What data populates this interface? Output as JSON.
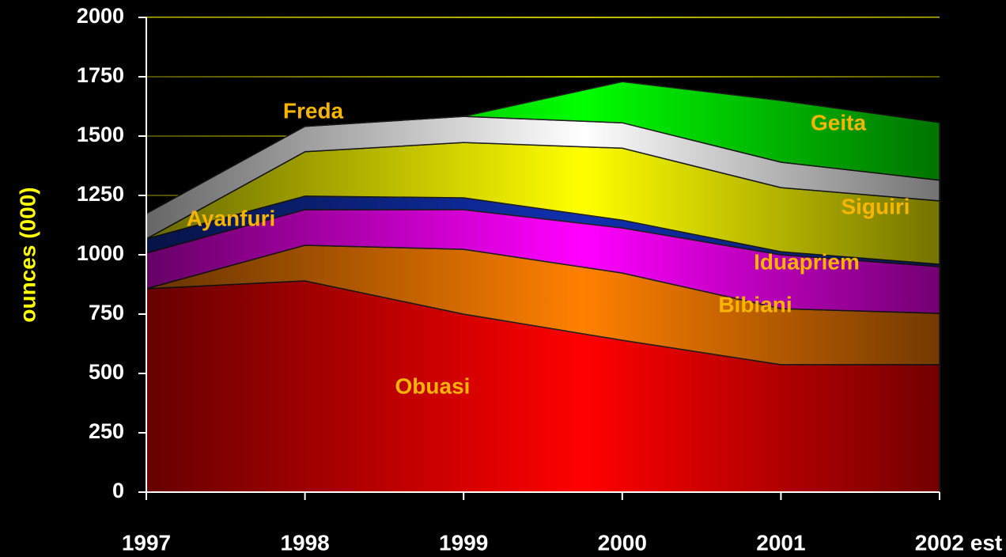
{
  "chart_data": {
    "type": "stacked_area",
    "y_label": "ounces (000)",
    "categories": [
      "1997",
      "1998",
      "1999",
      "2000",
      "2001",
      "2002 est"
    ],
    "ylim": [
      0,
      2000
    ],
    "yticks": [
      0,
      250,
      500,
      750,
      1000,
      1250,
      1500,
      1750,
      2000
    ],
    "grid": true,
    "series": [
      {
        "name": "Obuasi",
        "color": "#ff0000",
        "values": [
          857,
          890,
          750,
          640,
          537,
          537
        ]
      },
      {
        "name": "Bibiani",
        "color": "#ff8000",
        "values": [
          0,
          150,
          273,
          283,
          236,
          216
        ]
      },
      {
        "name": "Iduapriem",
        "color": "#ff00ff",
        "values": [
          150,
          150,
          167,
          190,
          227,
          197
        ]
      },
      {
        "name": "Ayanfuri",
        "color": "#1030b0",
        "values": [
          60,
          57,
          50,
          33,
          13,
          10
        ]
      },
      {
        "name": "Siguiri",
        "color": "#ffff00",
        "values": [
          0,
          187,
          233,
          303,
          270,
          267
        ]
      },
      {
        "name": "Freda",
        "color": "#ffffff",
        "values": [
          107,
          107,
          110,
          107,
          107,
          87
        ]
      },
      {
        "name": "Geita",
        "color": "#00ff00",
        "values": [
          0,
          0,
          0,
          173,
          260,
          243
        ]
      }
    ]
  }
}
